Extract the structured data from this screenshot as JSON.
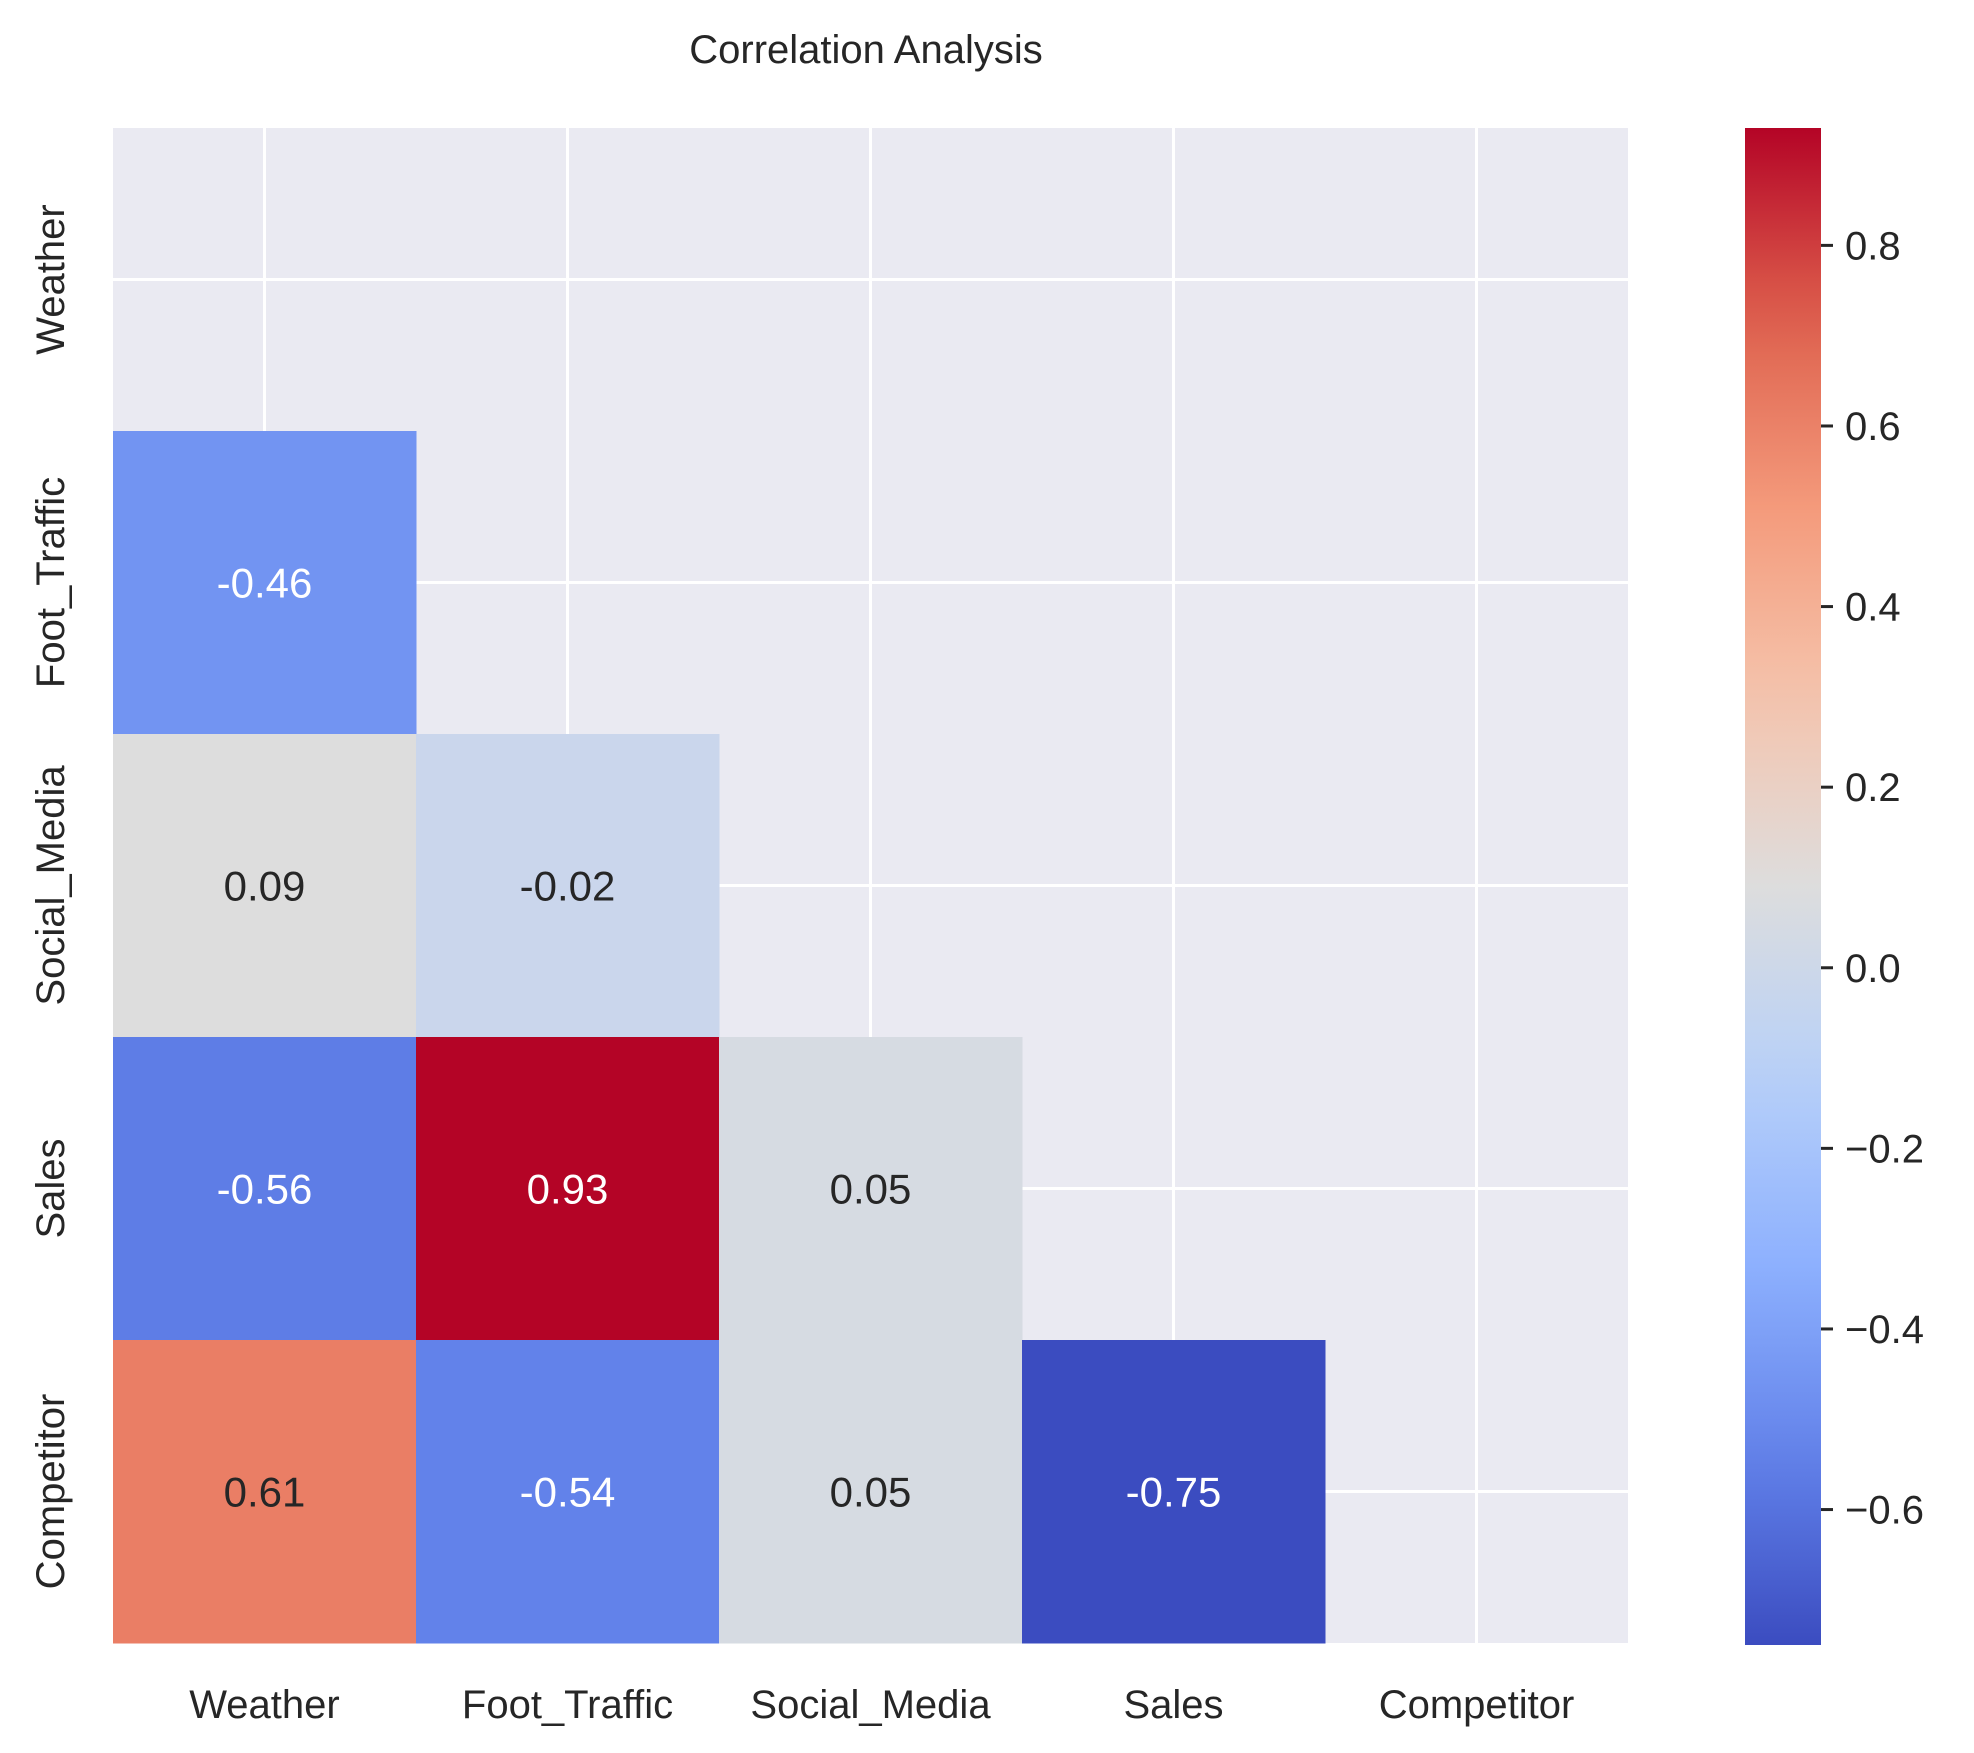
{
  "chart_data": {
    "type": "heatmap",
    "title": "Correlation Analysis",
    "variables": [
      "Weather",
      "Foot_Traffic",
      "Social_Media",
      "Sales",
      "Competitor"
    ],
    "mask": "upper-triangle-including-diagonal",
    "matrix": [
      [
        null,
        null,
        null,
        null,
        null
      ],
      [
        -0.46,
        null,
        null,
        null,
        null
      ],
      [
        0.09,
        -0.02,
        null,
        null,
        null
      ],
      [
        -0.56,
        0.93,
        0.05,
        null,
        null
      ],
      [
        0.61,
        -0.54,
        0.05,
        -0.75,
        null
      ]
    ],
    "cell_labels": [
      [
        "",
        "",
        "",
        "",
        ""
      ],
      [
        "-0.46",
        "",
        "",
        "",
        ""
      ],
      [
        "0.09",
        "-0.02",
        "",
        "",
        ""
      ],
      [
        "-0.56",
        "0.93",
        "0.05",
        "",
        ""
      ],
      [
        "0.61",
        "-0.54",
        "0.05",
        "-0.75",
        ""
      ]
    ],
    "colormap": "coolwarm",
    "colorbar": {
      "vmin": -0.75,
      "vmax": 0.93,
      "ticks": [
        -0.6,
        -0.4,
        -0.2,
        0.0,
        0.2,
        0.4,
        0.6,
        0.8
      ],
      "tick_labels": [
        "−0.6",
        "−0.4",
        "−0.2",
        "0.0",
        "0.2",
        "0.4",
        "0.6",
        "0.8"
      ]
    },
    "grid": true,
    "background_color": "#eaeaf2"
  }
}
